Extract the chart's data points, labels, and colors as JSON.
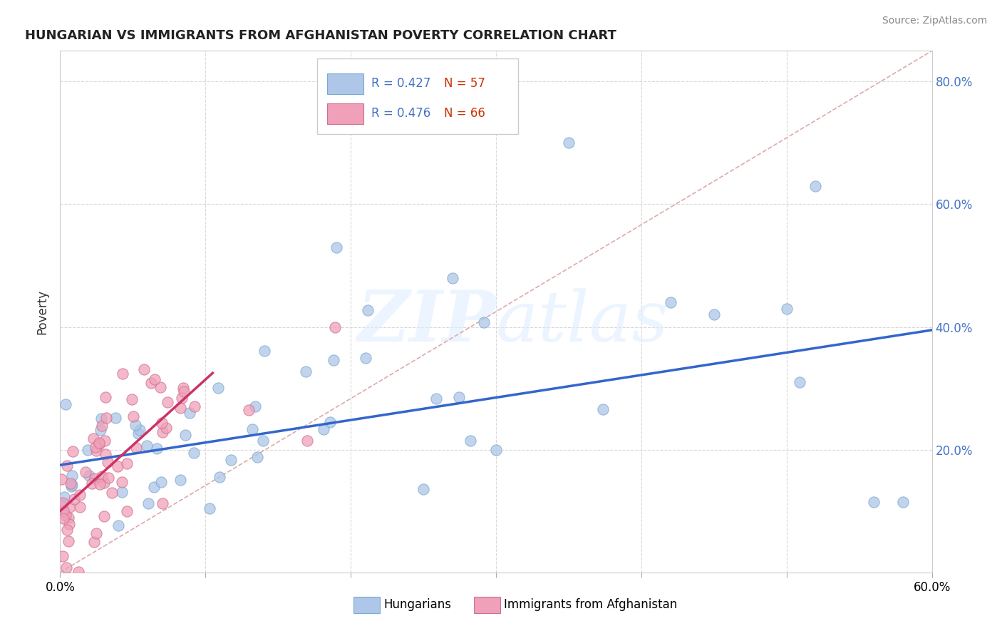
{
  "title": "HUNGARIAN VS IMMIGRANTS FROM AFGHANISTAN POVERTY CORRELATION CHART",
  "source": "Source: ZipAtlas.com",
  "ylabel": "Poverty",
  "xlim": [
    0.0,
    0.6
  ],
  "ylim": [
    0.0,
    0.85
  ],
  "color_hungarian": "#aec6e8",
  "color_afghan": "#f0a0b8",
  "trendline_color_hungarian": "#3366cc",
  "trendline_color_afghan": "#cc3366",
  "diag_color": "#ddaaaa",
  "watermark": "ZIPatlas",
  "legend_r1": "R = 0.427",
  "legend_n1": "N = 57",
  "legend_r2": "R = 0.476",
  "legend_n2": "N = 66",
  "hun_trend_x0": 0.0,
  "hun_trend_x1": 0.6,
  "hun_trend_y0": 0.175,
  "hun_trend_y1": 0.395,
  "afg_trend_x0": 0.0,
  "afg_trend_x1": 0.105,
  "afg_trend_y0": 0.1,
  "afg_trend_y1": 0.325
}
